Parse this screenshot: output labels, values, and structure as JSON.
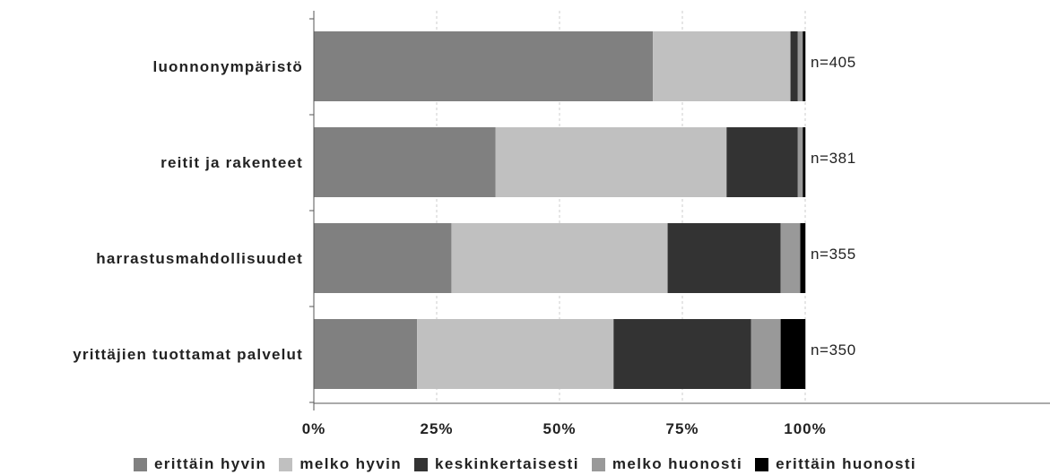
{
  "chart_data": {
    "type": "bar",
    "orientation": "horizontal",
    "stacked": true,
    "categories": [
      "luonnonympäristö",
      "reitit ja rakenteet",
      "harrastusmahdollisuudet",
      "yrittäjien tuottamat palvelut"
    ],
    "n_labels": [
      "n=405",
      "n=381",
      "n=355",
      "n=350"
    ],
    "series": [
      {
        "name": "erittäin hyvin",
        "color": "#808080",
        "values": [
          69,
          37,
          28,
          21
        ]
      },
      {
        "name": "melko hyvin",
        "color": "#c0c0c0",
        "values": [
          28,
          47,
          44,
          40
        ]
      },
      {
        "name": "keskinkertaisesti",
        "color": "#333333",
        "values": [
          1.5,
          14.5,
          23,
          28
        ]
      },
      {
        "name": "melko huonosti",
        "color": "#999999",
        "values": [
          1,
          1,
          4,
          6
        ]
      },
      {
        "name": "erittäin huonosti",
        "color": "#000000",
        "values": [
          0.5,
          0.5,
          1,
          5
        ]
      }
    ],
    "x_ticks": [
      "0%",
      "25%",
      "50%",
      "75%",
      "100%"
    ],
    "xlim": [
      0,
      100
    ],
    "grid": "vertical dashed",
    "legend_position": "bottom"
  }
}
